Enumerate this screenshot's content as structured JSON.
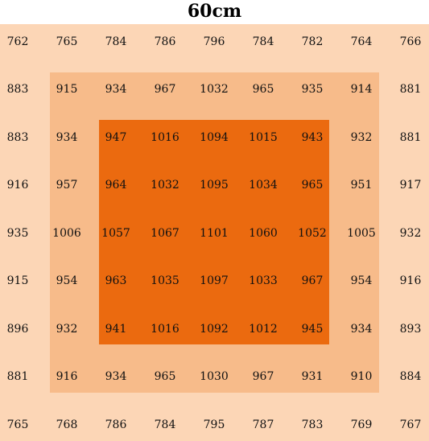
{
  "title": "60cm",
  "colors": {
    "outer_zone": "#fcd6b6",
    "middle_zone": "#f7bb8a",
    "inner_zone": "#eb6a0f"
  },
  "grid": [
    [
      "762",
      "765",
      "784",
      "786",
      "796",
      "784",
      "782",
      "764",
      "766"
    ],
    [
      "883",
      "915",
      "934",
      "967",
      "1032",
      "965",
      "935",
      "914",
      "881"
    ],
    [
      "883",
      "934",
      "947",
      "1016",
      "1094",
      "1015",
      "943",
      "932",
      "881"
    ],
    [
      "916",
      "957",
      "964",
      "1032",
      "1095",
      "1034",
      "965",
      "951",
      "917"
    ],
    [
      "935",
      "1006",
      "1057",
      "1067",
      "1101",
      "1060",
      "1052",
      "1005",
      "932"
    ],
    [
      "915",
      "954",
      "963",
      "1035",
      "1097",
      "1033",
      "967",
      "954",
      "916"
    ],
    [
      "896",
      "932",
      "941",
      "1016",
      "1092",
      "1012",
      "945",
      "934",
      "893"
    ],
    [
      "881",
      "916",
      "934",
      "965",
      "1030",
      "967",
      "931",
      "910",
      "884"
    ],
    [
      "765",
      "768",
      "786",
      "784",
      "795",
      "787",
      "783",
      "769",
      "767"
    ]
  ]
}
